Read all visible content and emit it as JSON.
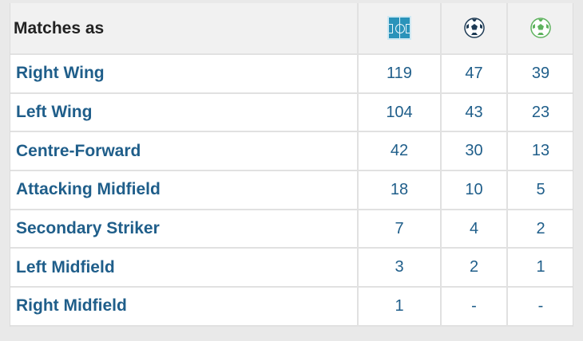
{
  "header": {
    "title": "Matches as",
    "icons": [
      "pitch-icon",
      "ball-goals-icon",
      "ball-assists-icon"
    ]
  },
  "colors": {
    "link": "#1f5e8a",
    "header_bg": "#f1f1f1",
    "pitch": "#2a93ba",
    "goal_ball": "#1e3b55",
    "assist_ball": "#5fb35f"
  },
  "rows": [
    {
      "position": "Right Wing",
      "matches": "119",
      "goals": "47",
      "assists": "39"
    },
    {
      "position": "Left Wing",
      "matches": "104",
      "goals": "43",
      "assists": "23"
    },
    {
      "position": "Centre-Forward",
      "matches": "42",
      "goals": "30",
      "assists": "13"
    },
    {
      "position": "Attacking Midfield",
      "matches": "18",
      "goals": "10",
      "assists": "5"
    },
    {
      "position": "Secondary Striker",
      "matches": "7",
      "goals": "4",
      "assists": "2"
    },
    {
      "position": "Left Midfield",
      "matches": "3",
      "goals": "2",
      "assists": "1"
    },
    {
      "position": "Right Midfield",
      "matches": "1",
      "goals": "-",
      "assists": "-"
    }
  ]
}
